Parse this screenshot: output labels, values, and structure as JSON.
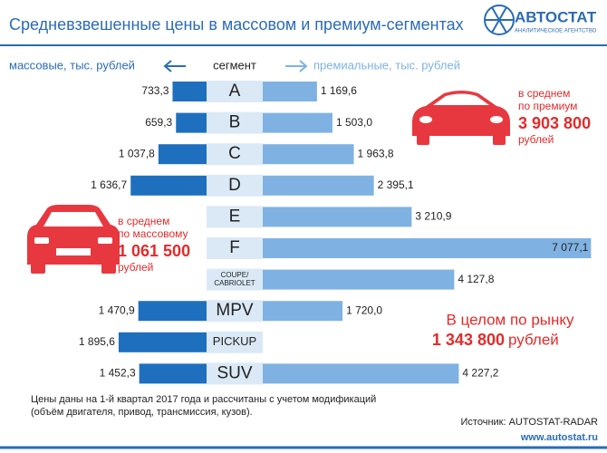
{
  "chart_data": {
    "type": "butterfly-bar",
    "title": "Средневзвешенные цены в массовом и премиум-сегментах",
    "logo": {
      "name": "АВТОСТАТ",
      "tagline": "АНАЛИТИЧЕСКОЕ АГЕНТСТВО"
    },
    "left_label": "массовые, тыс. рублей",
    "center_label": "сегмент",
    "right_label": "премиальные, тыс. рублей",
    "categories": [
      "A",
      "B",
      "C",
      "D",
      "E",
      "F",
      "COUPE/ CABRIOLET",
      "MPV",
      "PICKUP",
      "SUV"
    ],
    "series": [
      {
        "name": "массовые",
        "color": "#1f6fbf",
        "side": "left",
        "values": [
          733.3,
          659.3,
          1037.8,
          1636.7,
          null,
          null,
          null,
          1470.9,
          1895.6,
          1452.3
        ],
        "value_labels": [
          "733,3",
          "659,3",
          "1 037,8",
          "1 636,7",
          null,
          null,
          null,
          "1 470,9",
          "1 895,6",
          "1 452,3"
        ]
      },
      {
        "name": "премиальные",
        "color": "#7fb2e2",
        "side": "right",
        "values": [
          1169.6,
          1503.0,
          1963.8,
          2395.1,
          3210.9,
          7077.1,
          4127.8,
          1720.0,
          null,
          4227.2
        ],
        "value_labels": [
          "1 169,6",
          "1 503,0",
          "1 963,8",
          "2 395,1",
          "3 210,9",
          "7 077,1",
          "4 127,8",
          "1 720,0",
          null,
          "4 227,2"
        ]
      }
    ],
    "annotations": [
      {
        "lines": [
          "в среднем",
          "по премиум"
        ],
        "value": "3 903 800",
        "unit": "рублей"
      },
      {
        "lines": [
          "в среднем",
          "по массовому"
        ],
        "value": "1 061 500",
        "unit": "рублей"
      },
      {
        "lines": [
          "В целом по рынку"
        ],
        "value": "1 343 800",
        "unit": "рублей"
      }
    ],
    "notes": [
      "Цены даны на 1-й квартал 2017 года и рассчитаны с учетом модификаций",
      "(объём двигателя, привод, трансмиссия, кузов)."
    ],
    "source": "Источник: AUTOSTAT-RADAR",
    "website": "www.autostat.ru"
  }
}
